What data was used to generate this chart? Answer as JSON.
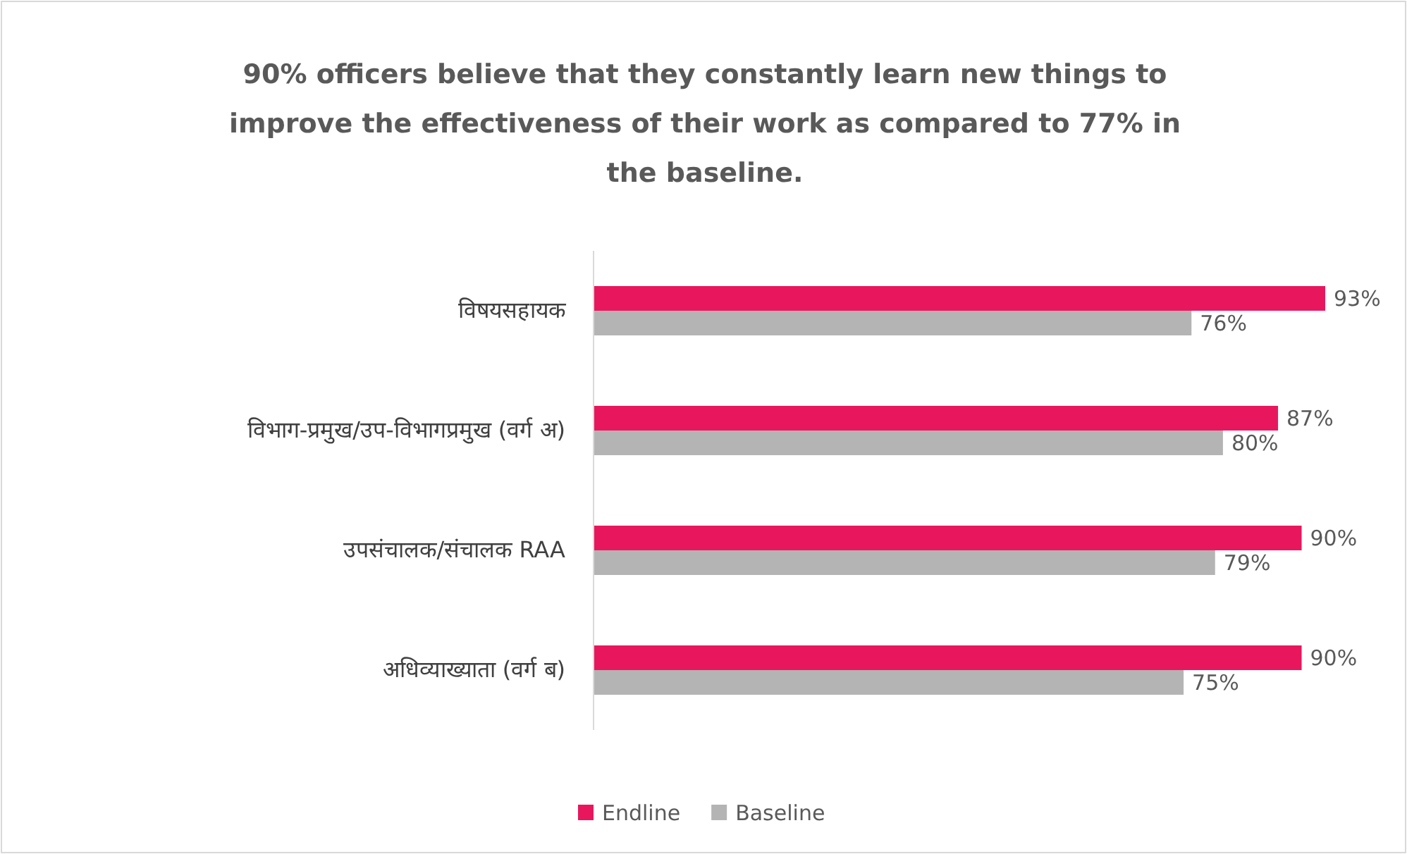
{
  "chart_data": {
    "type": "bar",
    "orientation": "horizontal",
    "title": "90% officers believe that they constantly learn new things to improve the effectiveness of their work as compared to 77% in the baseline.",
    "categories": [
      "विषयसहायक",
      "विभाग-प्रमुख/उप-विभागप्रमुख (वर्ग अ)",
      "उपसंचालक/संचालक RAA",
      "अधिव्याख्याता (वर्ग ब)"
    ],
    "series": [
      {
        "name": "Endline",
        "color": "#e8175d",
        "values": [
          93,
          87,
          90,
          90
        ],
        "value_labels": [
          "93%",
          "87%",
          "90%",
          "90%"
        ]
      },
      {
        "name": "Baseline",
        "color": "#b4b4b4",
        "values": [
          76,
          80,
          79,
          75
        ],
        "value_labels": [
          "76%",
          "80%",
          "79%",
          "75%"
        ]
      }
    ],
    "legend": "bottom"
  }
}
